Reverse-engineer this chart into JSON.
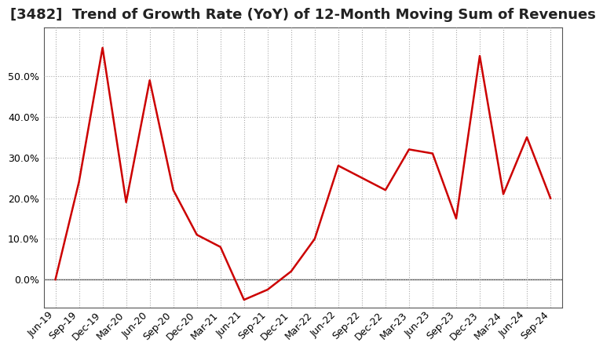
{
  "title": "[3482]  Trend of Growth Rate (YoY) of 12-Month Moving Sum of Revenues",
  "x_labels": [
    "Jun-19",
    "Sep-19",
    "Dec-19",
    "Mar-20",
    "Jun-20",
    "Sep-20",
    "Dec-20",
    "Mar-21",
    "Jun-21",
    "Sep-21",
    "Dec-21",
    "Mar-22",
    "Jun-22",
    "Sep-22",
    "Dec-22",
    "Mar-23",
    "Jun-23",
    "Sep-23",
    "Dec-23",
    "Mar-24",
    "Jun-24",
    "Sep-24"
  ],
  "y_values": [
    0.0,
    0.24,
    0.57,
    0.19,
    0.49,
    0.22,
    0.11,
    0.08,
    -0.05,
    -0.025,
    0.02,
    0.1,
    0.28,
    0.25,
    0.22,
    0.32,
    0.31,
    0.15,
    0.55,
    0.21,
    0.35,
    0.2
  ],
  "line_color": "#cc0000",
  "background_color": "#ffffff",
  "grid_color": "#aaaaaa",
  "zero_line_color": "#555555",
  "spine_color": "#555555",
  "ylim": [
    -0.07,
    0.62
  ],
  "yticks": [
    0.0,
    0.1,
    0.2,
    0.3,
    0.4,
    0.5
  ],
  "title_fontsize": 13,
  "tick_fontsize": 9
}
